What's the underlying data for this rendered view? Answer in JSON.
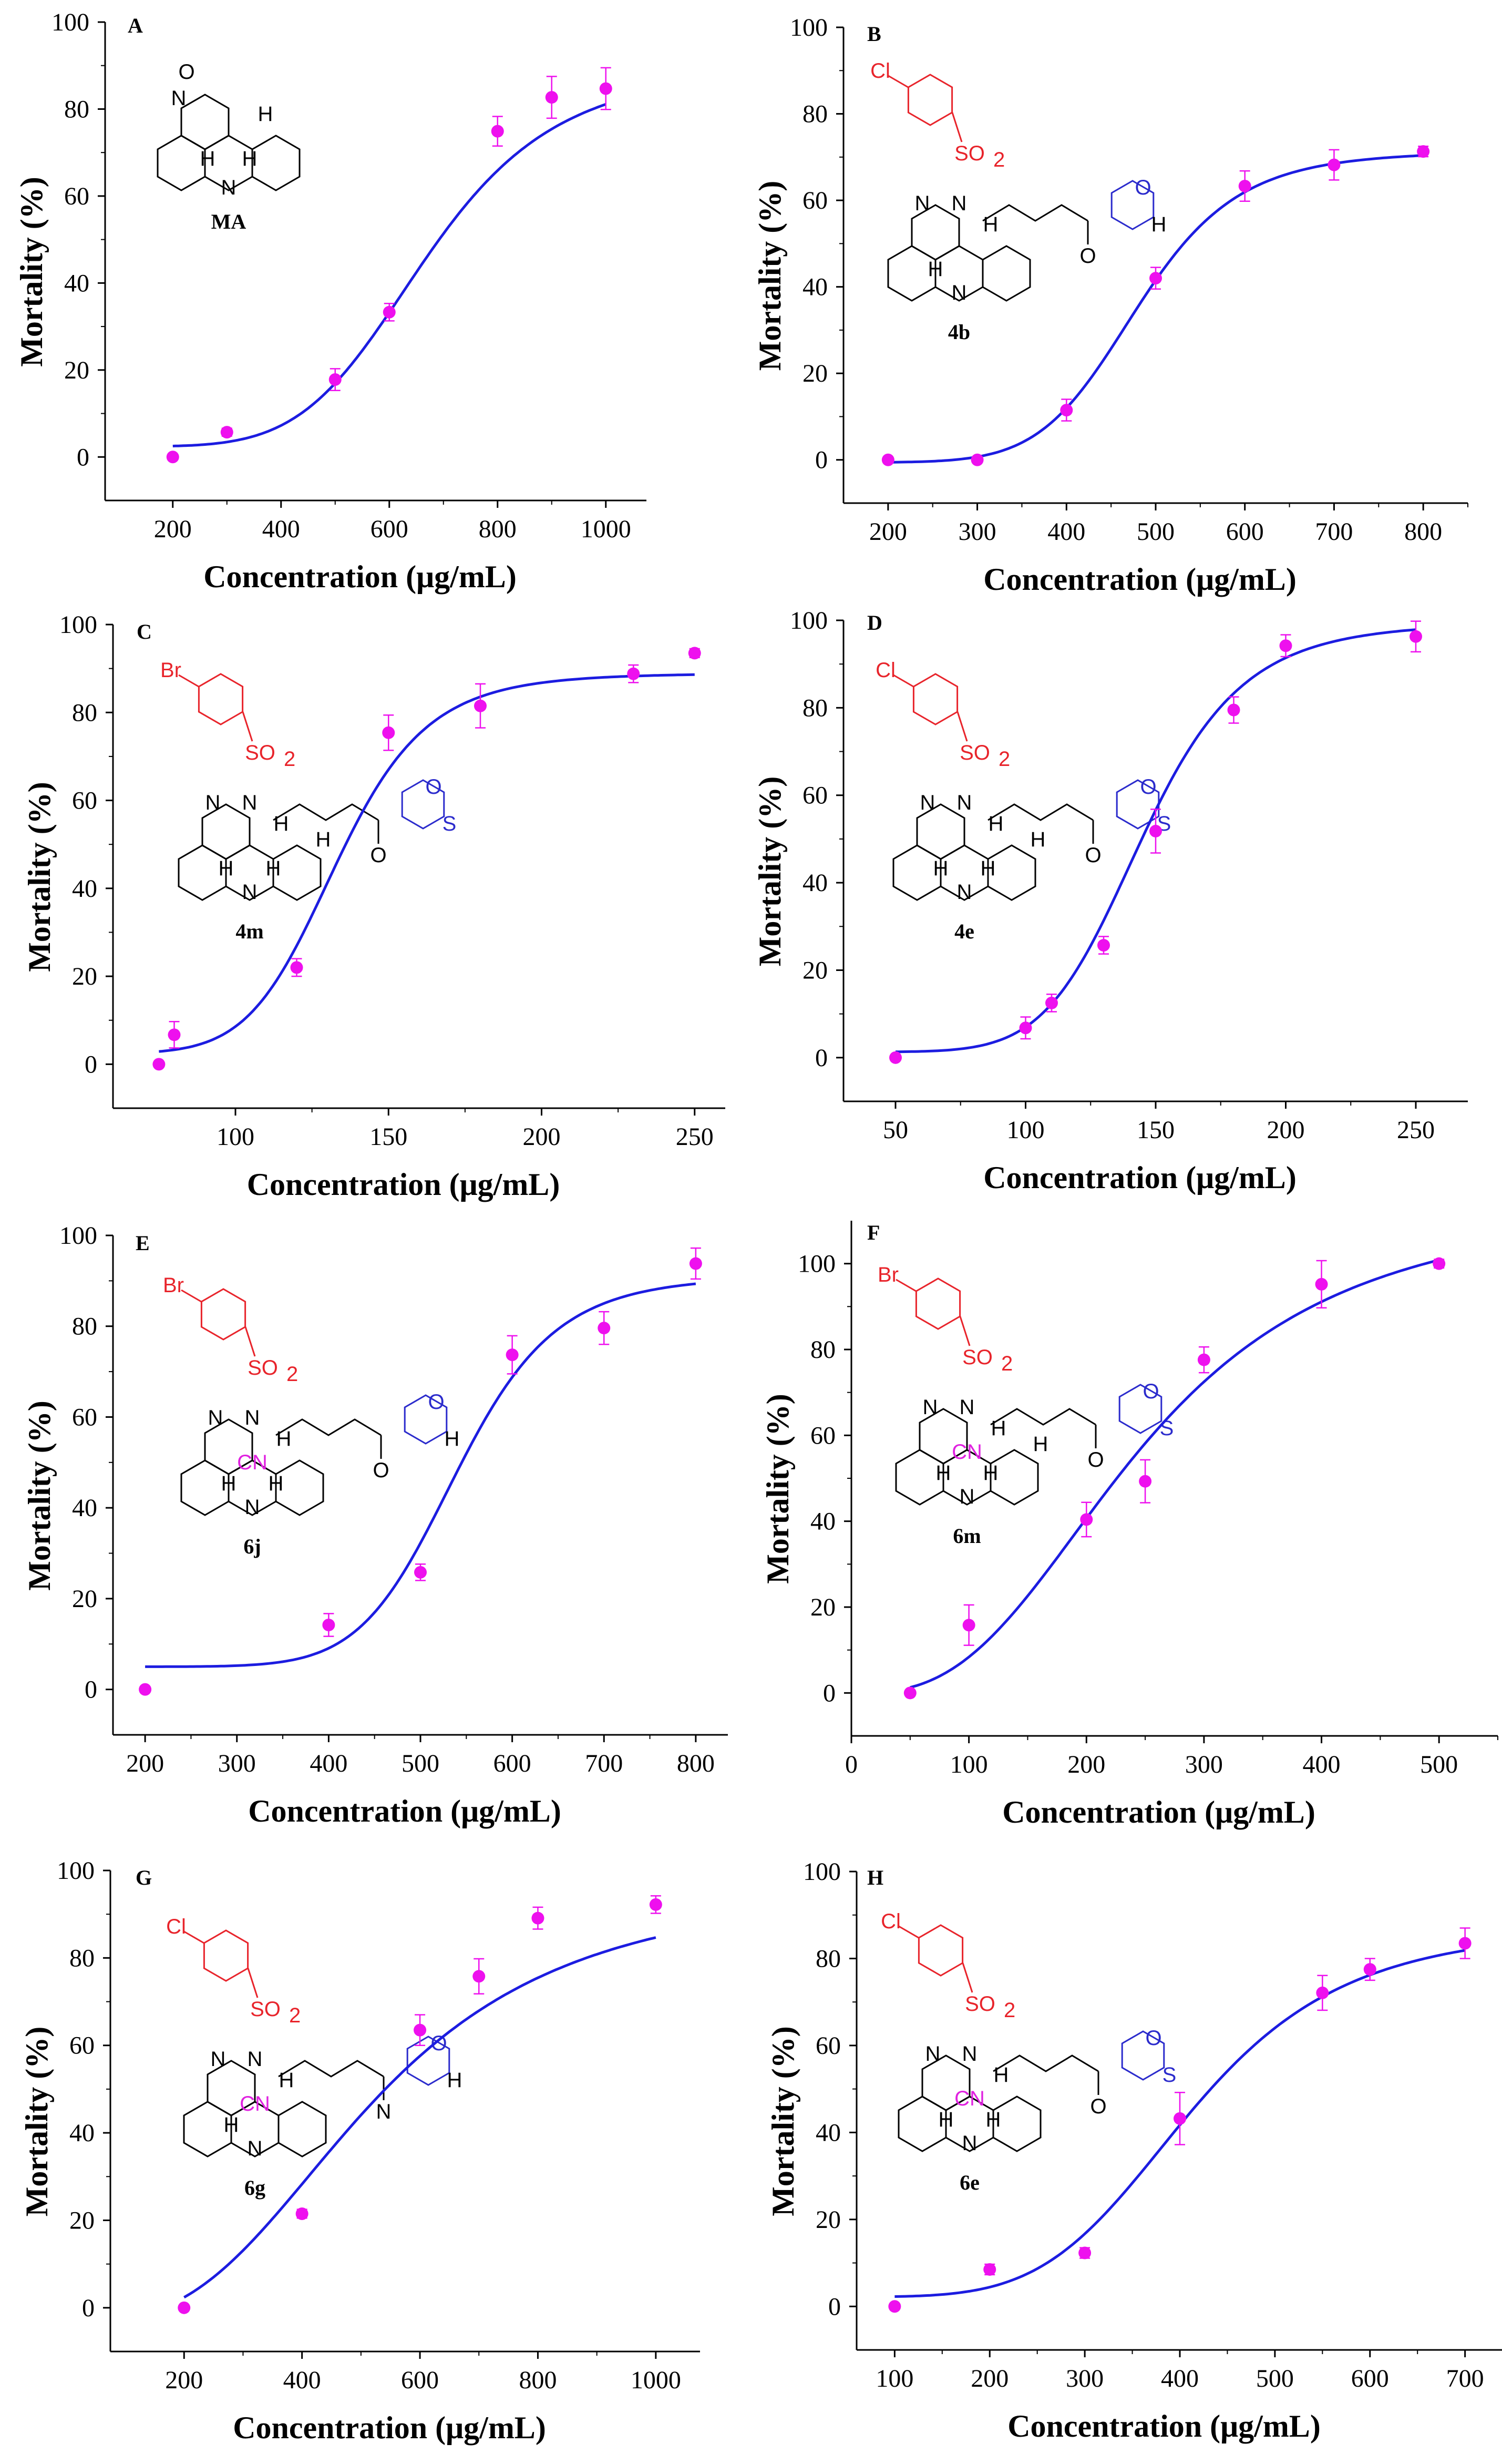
{
  "figure": {
    "style": {
      "curve_color": "#1c1ce0",
      "point_color": "#ee10ee",
      "errorbar_color": "#ee10ee",
      "axis_color": "#000000",
      "halogen_color": "#e8242b",
      "sulfonyl_color": "#e8242b",
      "amine_color": "#2b2bcc",
      "cyano_color": "#e021e0"
    }
  },
  "chart_data": [
    {
      "type": "scatter",
      "panel": "A",
      "compound": "MA",
      "xlabel": "Concentration (μg/mL)",
      "ylabel": "Mortality (%)",
      "xlim": [
        75,
        1075
      ],
      "ylim": [
        -10,
        100
      ],
      "xticks": [
        200,
        400,
        600,
        800,
        1000
      ],
      "yticks": [
        0,
        20,
        40,
        60,
        80,
        100
      ],
      "x": [
        200,
        300,
        500,
        600,
        800,
        900,
        1000
      ],
      "y": [
        0,
        5.7,
        17.8,
        33.3,
        74.9,
        82.7,
        84.7
      ],
      "err": [
        0,
        0.9,
        2.5,
        2.0,
        3.4,
        4.8,
        4.8
      ],
      "fit": {
        "model": "logistic",
        "a1": 2.4,
        "a2": 89.8,
        "x0": 670,
        "p": 5.5,
        "x_from": 200,
        "x_to": 1000
      },
      "structure": {
        "labels": [
          "O",
          "N",
          "N",
          "H",
          "H",
          "H"
        ],
        "groups": []
      }
    },
    {
      "type": "scatter",
      "panel": "B",
      "compound": "4b",
      "xlabel": "Concentration (μg/mL)",
      "ylabel": "Mortality (%)",
      "xlim": [
        150,
        850
      ],
      "ylim": [
        -10,
        100
      ],
      "xticks": [
        200,
        300,
        400,
        500,
        600,
        700,
        800
      ],
      "yticks": [
        0,
        20,
        40,
        60,
        80,
        100
      ],
      "x": [
        200,
        300,
        400,
        500,
        600,
        700,
        800
      ],
      "y": [
        0,
        0,
        11.5,
        42,
        63.3,
        68.2,
        71.3
      ],
      "err": [
        0,
        0,
        2.5,
        2.5,
        3.5,
        3.5,
        1.2
      ],
      "fit": {
        "model": "logistic",
        "a1": -0.6,
        "a2": 71.3,
        "x0": 480,
        "p": 8.5,
        "x_from": 200,
        "x_to": 800
      },
      "structure": {
        "labels": [
          "N",
          "N",
          "N",
          "O",
          "O",
          "H",
          "H",
          "H"
        ],
        "groups": [
          "Cl",
          "SO2"
        ]
      }
    },
    {
      "type": "scatter",
      "panel": "C",
      "compound": "4m",
      "xlabel": "Concentration (μg/mL)",
      "ylabel": "Mortality (%)",
      "xlim": [
        60,
        260
      ],
      "ylim": [
        -10,
        100
      ],
      "xticks": [
        100,
        150,
        200,
        250
      ],
      "yticks": [
        0,
        20,
        40,
        60,
        80,
        100
      ],
      "x": [
        75,
        80,
        120,
        150,
        180,
        230,
        250
      ],
      "y": [
        0,
        6.7,
        22,
        75.4,
        81.5,
        88.8,
        93.5
      ],
      "err": [
        0,
        3.0,
        2.0,
        4.0,
        5.0,
        2.0,
        1.0
      ],
      "fit": {
        "model": "logistic",
        "a1": 2.4,
        "a2": 88.9,
        "x0": 133,
        "p": 9.0,
        "x_from": 75,
        "x_to": 250
      },
      "structure": {
        "labels": [
          "N",
          "N",
          "N",
          "O",
          "O",
          "S",
          "H",
          "H",
          "H",
          "H"
        ],
        "groups": [
          "Br",
          "SO2"
        ]
      }
    },
    {
      "type": "scatter",
      "panel": "D",
      "compound": "4e",
      "xlabel": "Concentration (μg/mL)",
      "ylabel": "Mortality (%)",
      "xlim": [
        30,
        270
      ],
      "ylim": [
        -10,
        100
      ],
      "xticks": [
        50,
        100,
        150,
        200,
        250
      ],
      "yticks": [
        0,
        20,
        40,
        60,
        80,
        100
      ],
      "x": [
        50,
        100,
        110,
        130,
        150,
        180,
        200,
        250
      ],
      "y": [
        0,
        6.8,
        12.5,
        25.7,
        51.8,
        79.5,
        94.2,
        96.3
      ],
      "err": [
        0,
        2.5,
        2.0,
        2.0,
        5.0,
        3.0,
        2.5,
        3.5
      ],
      "fit": {
        "model": "logistic",
        "a1": 1.3,
        "a2": 99.5,
        "x0": 145,
        "p": 7.5,
        "x_from": 50,
        "x_to": 250
      },
      "structure": {
        "labels": [
          "N",
          "N",
          "N",
          "O",
          "O",
          "S",
          "H",
          "H",
          "H",
          "H"
        ],
        "groups": [
          "Cl",
          "SO2"
        ]
      }
    },
    {
      "type": "scatter",
      "panel": "E",
      "compound": "6j",
      "xlabel": "Concentration (μg/mL)",
      "ylabel": "Mortality (%)",
      "xlim": [
        165,
        835
      ],
      "ylim": [
        -10,
        100
      ],
      "xticks": [
        200,
        300,
        400,
        500,
        600,
        700,
        800
      ],
      "yticks": [
        0,
        20,
        40,
        60,
        80,
        100
      ],
      "x": [
        200,
        400,
        500,
        600,
        700,
        800
      ],
      "y": [
        0,
        14.2,
        25.8,
        73.7,
        79.6,
        93.8
      ],
      "err": [
        0,
        2.5,
        1.8,
        4.2,
        3.6,
        3.4
      ],
      "fit": {
        "model": "logistic",
        "a1": 5.0,
        "a2": 91.0,
        "x0": 540,
        "p": 10.0,
        "x_from": 200,
        "x_to": 800
      },
      "structure": {
        "labels": [
          "N",
          "N",
          "N",
          "O",
          "O",
          "H",
          "H",
          "H",
          "H"
        ],
        "groups": [
          "Br",
          "SO2",
          "CN"
        ]
      }
    },
    {
      "type": "scatter",
      "panel": "F",
      "compound": "6m",
      "xlabel": "Concentration (μg/mL)",
      "ylabel": "Mortality (%)",
      "xlim": [
        0,
        550
      ],
      "ylim": [
        -10,
        110
      ],
      "xticks": [
        0,
        100,
        200,
        300,
        400,
        500
      ],
      "yticks": [
        0,
        20,
        40,
        60,
        80,
        100
      ],
      "x": [
        50,
        100,
        200,
        250,
        300,
        400,
        500
      ],
      "y": [
        0,
        15.8,
        40.4,
        49.3,
        77.6,
        95.2,
        100
      ],
      "err": [
        0,
        4.7,
        4.0,
        5.0,
        3.0,
        5.5,
        1.0
      ],
      "fit": {
        "model": "logistic",
        "a1": 0,
        "a2": 115,
        "x0": 248,
        "p": 2.8,
        "x_from": 50,
        "x_to": 500
      },
      "structure": {
        "labels": [
          "N",
          "N",
          "N",
          "O",
          "O",
          "S",
          "H",
          "H",
          "H",
          "H"
        ],
        "groups": [
          "Br",
          "SO2",
          "CN"
        ]
      }
    },
    {
      "type": "scatter",
      "panel": "G",
      "compound": "6g",
      "xlabel": "Concentration (μg/mL)",
      "ylabel": "Mortality (%)",
      "xlim": [
        75,
        1075
      ],
      "ylim": [
        -10,
        100
      ],
      "xticks": [
        200,
        400,
        600,
        800,
        1000
      ],
      "yticks": [
        0,
        20,
        40,
        60,
        80,
        100
      ],
      "x": [
        200,
        400,
        600,
        700,
        800,
        1000
      ],
      "y": [
        0,
        21.5,
        63.5,
        75.8,
        89.1,
        92.2
      ],
      "err": [
        0,
        1.0,
        3.5,
        4.0,
        2.5,
        2.0
      ],
      "fit": {
        "model": "logistic",
        "a1": -3.0,
        "a2": 97.0,
        "x0": 520,
        "p": 3.0,
        "x_from": 200,
        "x_to": 1000
      },
      "structure": {
        "labels": [
          "N",
          "N",
          "N",
          "N",
          "O",
          "H",
          "H",
          "H"
        ],
        "groups": [
          "Cl",
          "SO2",
          "CN"
        ]
      }
    },
    {
      "type": "scatter",
      "panel": "H",
      "compound": "6e",
      "xlabel": "Concentration (μg/mL)",
      "ylabel": "Mortality (%)",
      "xlim": [
        60,
        740
      ],
      "ylim": [
        -10,
        100
      ],
      "xticks": [
        100,
        200,
        300,
        400,
        500,
        600,
        700
      ],
      "yticks": [
        0,
        20,
        40,
        60,
        80,
        100
      ],
      "x": [
        100,
        200,
        300,
        400,
        550,
        600,
        700
      ],
      "y": [
        0,
        8.5,
        12.3,
        43.2,
        72.1,
        77.5,
        83.5
      ],
      "err": [
        0,
        1.2,
        1.2,
        6.0,
        4.0,
        2.5,
        3.5
      ],
      "fit": {
        "model": "logistic",
        "a1": 2.2,
        "a2": 87.5,
        "x0": 412,
        "p": 5.0,
        "x_from": 100,
        "x_to": 700
      },
      "structure": {
        "labels": [
          "N",
          "N",
          "N",
          "O",
          "O",
          "S",
          "H",
          "H",
          "H"
        ],
        "groups": [
          "Cl",
          "SO2",
          "CN"
        ]
      }
    }
  ]
}
